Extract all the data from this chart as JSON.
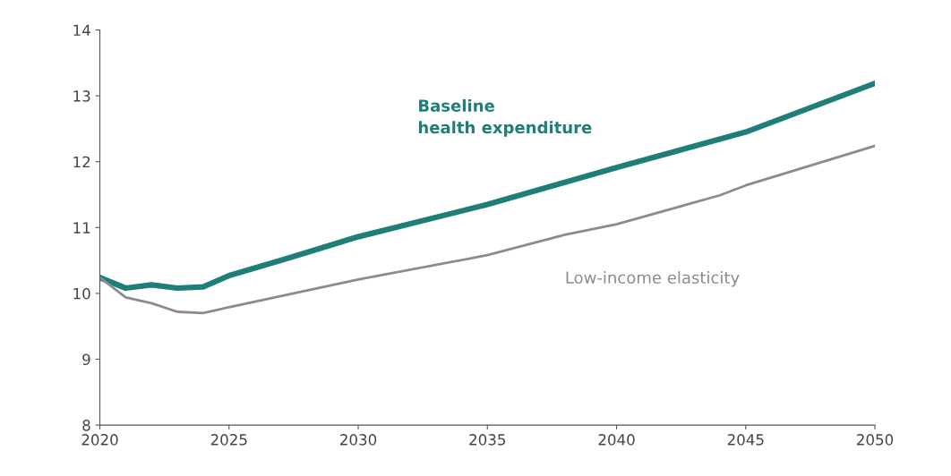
{
  "chart_data": {
    "type": "line",
    "x": [
      2020,
      2021,
      2022,
      2023,
      2024,
      2025,
      2027,
      2028,
      2030,
      2035,
      2040,
      2045,
      2050
    ],
    "series": [
      {
        "name": "Baseline\nhealth expenditure",
        "color": "#1f7f78",
        "values": [
          10.24,
          10.08,
          10.13,
          10.08,
          10.1,
          10.27,
          10.5,
          10.62,
          10.86,
          11.35,
          11.91,
          12.45,
          13.19
        ]
      },
      {
        "name": "Low-income elasticity",
        "color": "#8c8c8c",
        "x": [
          2020,
          2021,
          2022,
          2023,
          2024,
          2025,
          2030,
          2035,
          2038,
          2040,
          2044,
          2045,
          2050
        ],
        "values": [
          10.24,
          9.94,
          9.85,
          9.72,
          9.7,
          9.79,
          10.21,
          10.58,
          10.89,
          11.05,
          11.49,
          11.64,
          12.24
        ]
      }
    ],
    "xlim": [
      2020,
      2050
    ],
    "xticks": [
      2020,
      2025,
      2030,
      2035,
      2040,
      2045,
      2050
    ],
    "ylim": [
      8,
      14
    ],
    "yticks": [
      8,
      9,
      10,
      11,
      12,
      13,
      14
    ],
    "grid": false,
    "legend": false,
    "marker": "none",
    "line_style": "solid"
  }
}
